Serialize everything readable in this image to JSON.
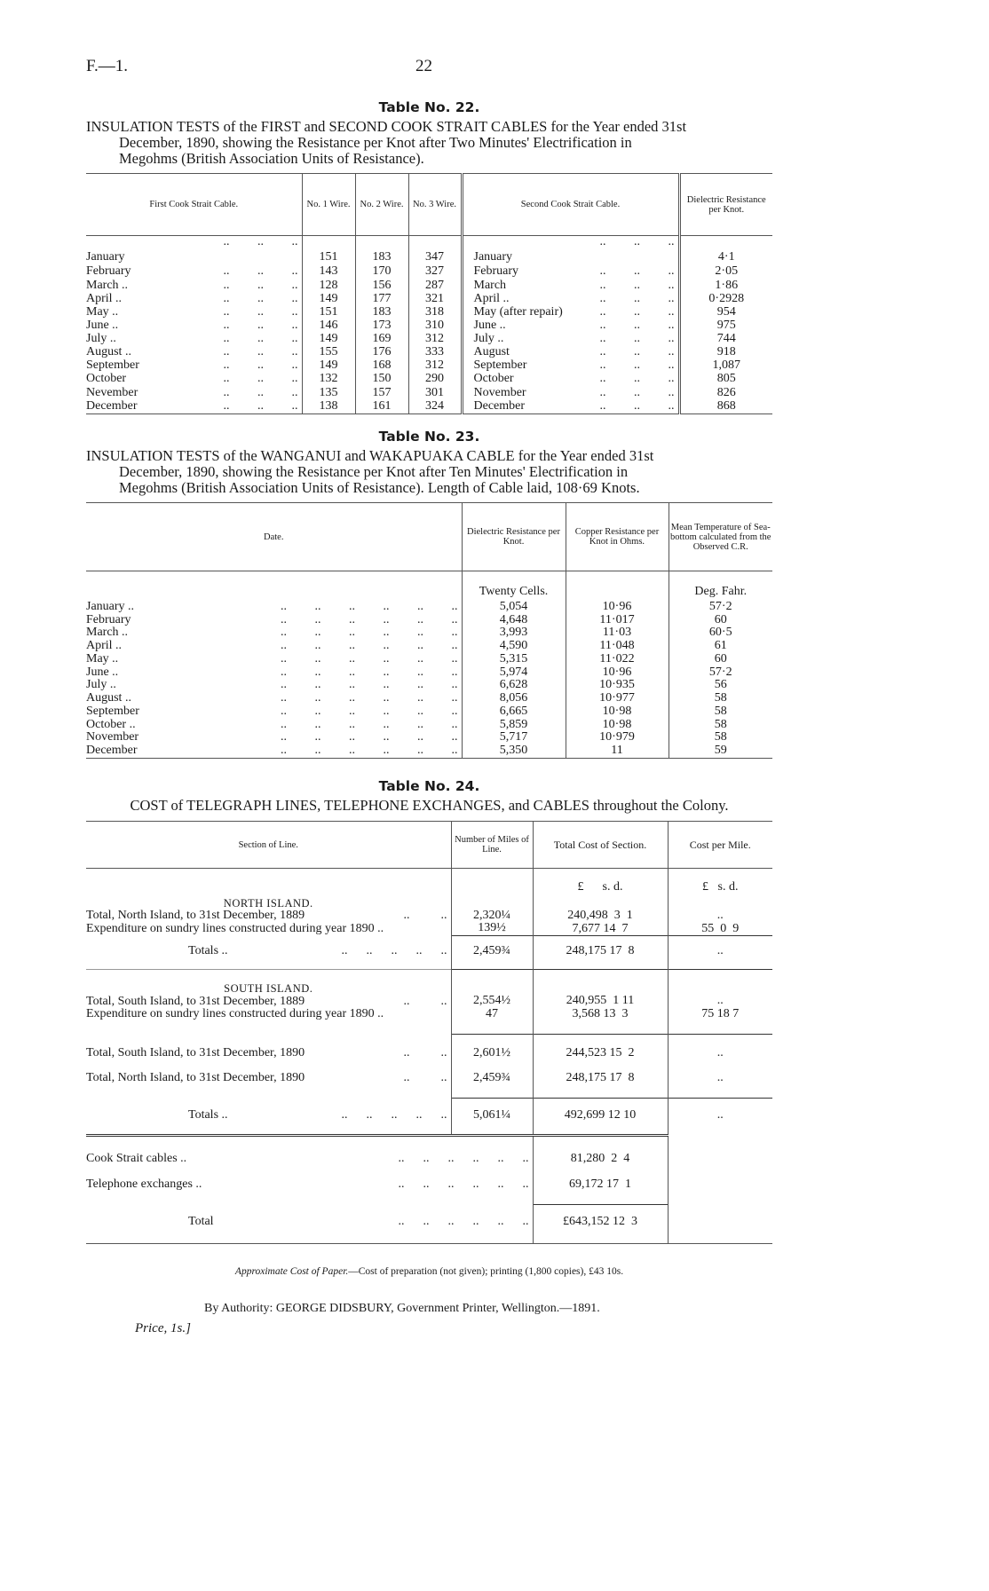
{
  "header": {
    "left": "F.—1.",
    "page": "22"
  },
  "t22": {
    "title": "Table No. 22.",
    "caption": [
      "INSULATION TESTS of the FIRST and SECOND COOK STRAIT CABLES for the Year ended 31st",
      "December, 1890, showing the Resistance per Knot after Two Minutes' Electrification in",
      "Megohms (British Association Units of Resistance)."
    ],
    "headers": [
      "First Cook Strait Cable.",
      "No. 1 Wire.",
      "No. 2 Wire.",
      "No. 3 Wire.",
      "Second Cook Strait Cable.",
      "Dielectric Resistance per Knot."
    ],
    "rows": [
      [
        "January",
        "151",
        "183",
        "347",
        "January",
        "4·1"
      ],
      [
        "February",
        "143",
        "170",
        "327",
        "February",
        "2·05"
      ],
      [
        "March ..",
        "128",
        "156",
        "287",
        "March",
        "1·86"
      ],
      [
        "April ..",
        "149",
        "177",
        "321",
        "April ..",
        "0·2928"
      ],
      [
        "May ..",
        "151",
        "183",
        "318",
        "May (after repair)",
        "954"
      ],
      [
        "June ..",
        "146",
        "173",
        "310",
        "June ..",
        "975"
      ],
      [
        "July ..",
        "149",
        "169",
        "312",
        "July ..",
        "744"
      ],
      [
        "August ..",
        "155",
        "176",
        "333",
        "August",
        "918"
      ],
      [
        "September",
        "149",
        "168",
        "312",
        "September",
        "1,087"
      ],
      [
        "October",
        "132",
        "150",
        "290",
        "October",
        "805"
      ],
      [
        "Nevember",
        "135",
        "157",
        "301",
        "November",
        "826"
      ],
      [
        "December",
        "138",
        "161",
        "324",
        "December",
        "868"
      ]
    ]
  },
  "t23": {
    "title": "Table No. 23.",
    "caption": [
      "INSULATION TESTS of the WANGANUI and WAKAPUAKA CABLE for the Year ended 31st",
      "December, 1890, showing the Resistance per Knot after Ten Minutes' Electrification in",
      "Megohms (British Association Units of Resistance). Length of Cable laid, 108·69 Knots."
    ],
    "headers": [
      "Date.",
      "Dielectric Resistance per Knot.",
      "Copper Resistance per Knot in Ohms.",
      "Mean Temperature of Sea-bottom calculated from the Observed C.R."
    ],
    "units": [
      "Twenty Cells.",
      "",
      "Deg. Fahr."
    ],
    "rows": [
      [
        "January ..",
        "5,054",
        "10·96",
        "57·2"
      ],
      [
        "February",
        "4,648",
        "11·017",
        "60"
      ],
      [
        "March ..",
        "3,993",
        "11·03",
        "60·5"
      ],
      [
        "April ..",
        "4,590",
        "11·048",
        "61"
      ],
      [
        "May ..",
        "5,315",
        "11·022",
        "60"
      ],
      [
        "June ..",
        "5,974",
        "10·96",
        "57·2"
      ],
      [
        "July ..",
        "6,628",
        "10·935",
        "56"
      ],
      [
        "August ..",
        "8,056",
        "10·977",
        "58"
      ],
      [
        "September",
        "6,665",
        "10·98",
        "58"
      ],
      [
        "October ..",
        "5,859",
        "10·98",
        "58"
      ],
      [
        "November",
        "5,717",
        "10·979",
        "58"
      ],
      [
        "December",
        "5,350",
        "11",
        "59"
      ]
    ]
  },
  "t24": {
    "title": "Table No. 24.",
    "caption": "COST of TELEGRAPH LINES, TELEPHONE EXCHANGES, and CABLES throughout the Colony.",
    "headers": [
      "Section of Line.",
      "Number of Miles of Line.",
      "Total Cost of Section.",
      "Cost per Mile."
    ],
    "units": {
      "total": "£      s. d.",
      "per_mile": "£   s. d."
    },
    "north": {
      "heading": "NORTH ISLAND.",
      "r1": "Total, North Island, to 31st December, 1889",
      "r1_miles": "2,320¼",
      "r1_cost": "240,498  3  1",
      "r1_mile": "..",
      "r2": "Expenditure on sundry lines constructed during year 1890 ..",
      "r2_miles": "139½",
      "r2_cost": "7,677 14  7",
      "r2_mile": "55  0  9",
      "totals": "Totals ..",
      "tot_miles": "2,459¾",
      "tot_cost": "248,175 17  8",
      "tot_mile": ".."
    },
    "south": {
      "heading": "SOUTH ISLAND.",
      "r1": "Total, South Island, to 31st December, 1889",
      "r1_miles": "2,554½",
      "r1_cost": "240,955  1 11",
      "r1_mile": "..",
      "r2": "Expenditure on sundry lines constructed during year 1890 ..",
      "r2_miles": "47",
      "r2_cost": "3,568 13  3",
      "r2_mile": "75 18  7"
    },
    "summary": [
      {
        "label": "Total, South Island, to 31st December, 1890",
        "miles": "2,601½",
        "cost": "244,523 15  2",
        "mile": ".."
      },
      {
        "label": "Total, North Island, to 31st December, 1890",
        "miles": "2,459¾",
        "cost": "248,175 17  8",
        "mile": ".."
      }
    ],
    "grand": {
      "label": "Totals ..",
      "miles": "5,061¼",
      "cost": "492,699 12 10",
      "mile": ".."
    },
    "extras": [
      {
        "label": "Cook Strait cables ..",
        "cost": "81,280  2  4"
      },
      {
        "label": "Telephone exchanges ..",
        "cost": "69,172 17  1"
      }
    ],
    "total": {
      "label": "Total",
      "cost": "£643,152 12  3"
    }
  },
  "footer": {
    "approx_label": "Approximate Cost of Paper.",
    "approx_text": "—Cost of preparation (not given); printing (1,800 copies), £43 10s.",
    "authority": "By Authority: GEORGE DIDSBURY, Government Printer, Wellington.—1891.",
    "price": "Price, 1s.]"
  }
}
